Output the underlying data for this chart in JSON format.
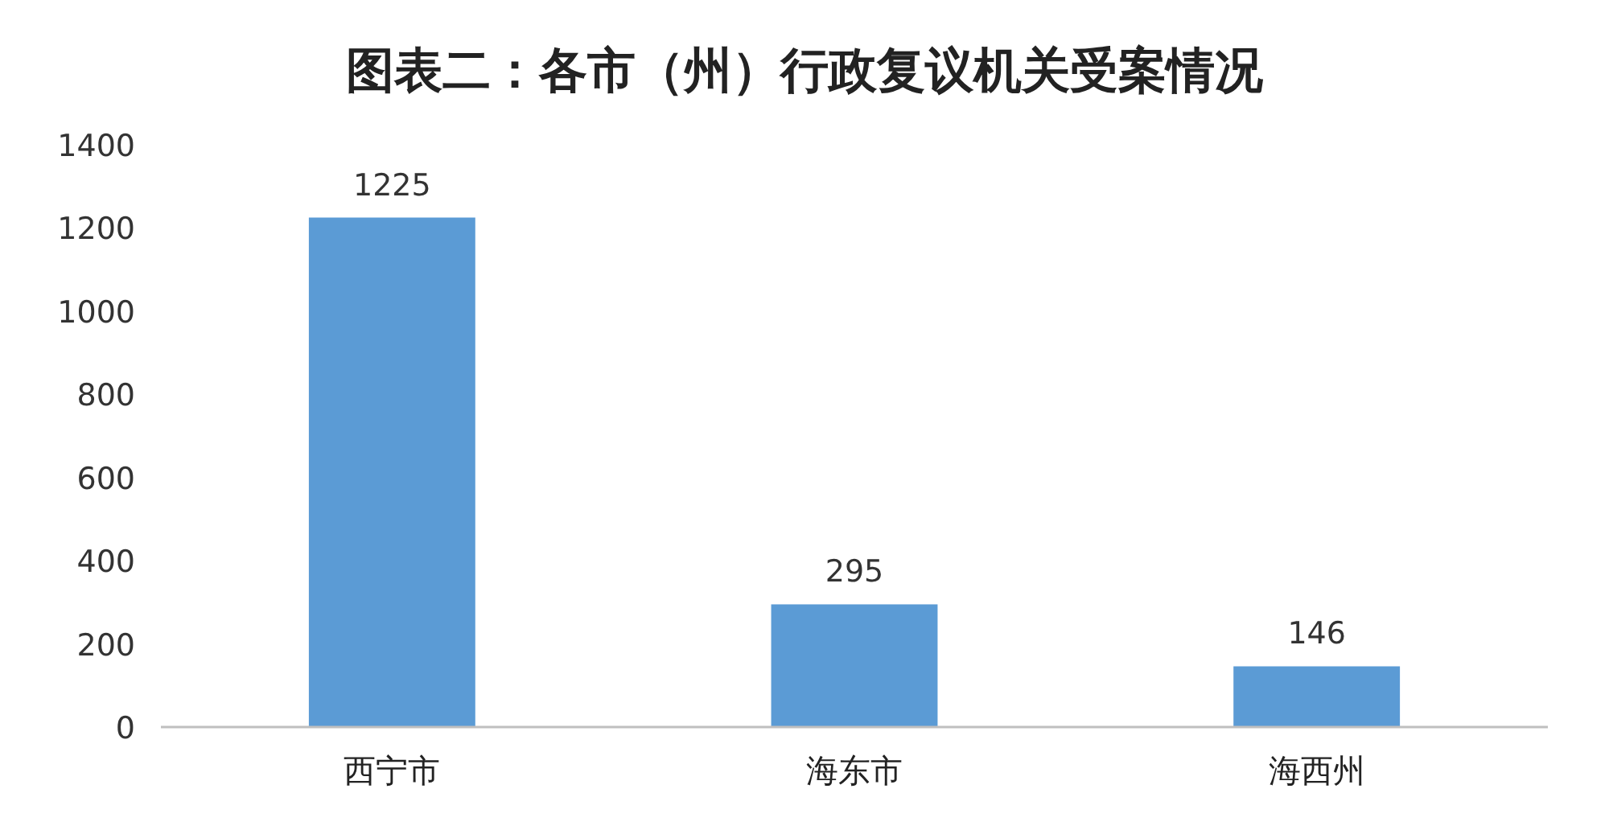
{
  "chart_data": {
    "type": "bar",
    "title": "图表二：各市（州）行政复议机关受案情况",
    "categories": [
      "西宁市",
      "海东市",
      "海西州"
    ],
    "values": [
      1225,
      295,
      146
    ],
    "color": "#5b9bd5",
    "ylim": [
      0,
      1400
    ],
    "yticks": [
      0,
      200,
      400,
      600,
      800,
      1000,
      1200,
      1400
    ],
    "data_labels": true
  }
}
